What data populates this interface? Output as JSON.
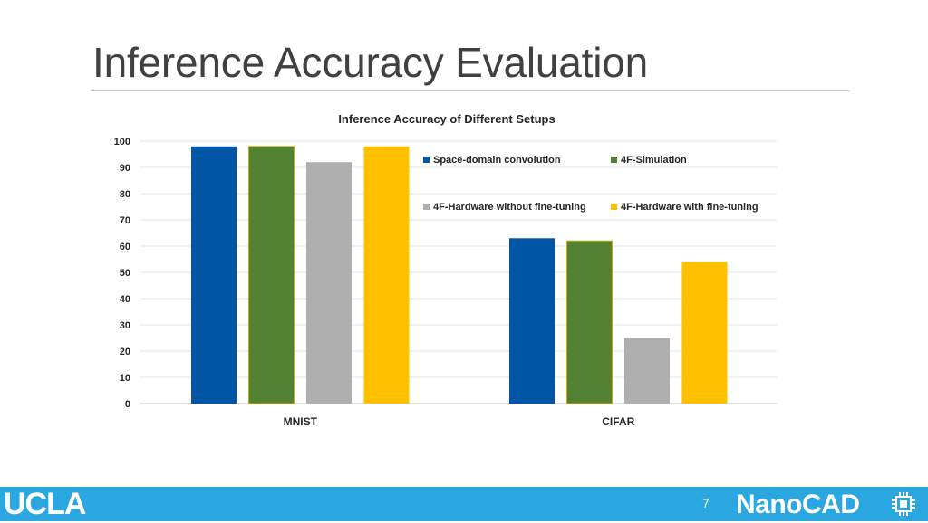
{
  "slide": {
    "title": "Inference Accuracy Evaluation",
    "page_number": "7"
  },
  "footer": {
    "left_logo_text": "UCLA",
    "right_logo_text": "NanoCAD",
    "right_logo_icon": "chip-icon",
    "bar_color": "#2aa6e0"
  },
  "chart_data": {
    "type": "bar",
    "title": "Inference Accuracy of Different Setups",
    "categories": [
      "MNIST",
      "CIFAR"
    ],
    "series": [
      {
        "name": "Space-domain convolution",
        "values": [
          98,
          63
        ],
        "color": "#0055a5"
      },
      {
        "name": "4F-Simulation",
        "values": [
          98,
          62
        ],
        "color": "#548235"
      },
      {
        "name": "4F-Hardware without fine-tuning",
        "values": [
          92,
          25
        ],
        "color": "#afafaf"
      },
      {
        "name": "4F-Hardware with fine-tuning",
        "values": [
          98,
          54
        ],
        "color": "#ffc000"
      }
    ],
    "ylim": [
      0,
      100
    ],
    "yticks": [
      "0",
      "10",
      "20",
      "30",
      "40",
      "50",
      "60",
      "70",
      "80",
      "90",
      "100"
    ],
    "grid": true,
    "legend_position": "top-right"
  }
}
